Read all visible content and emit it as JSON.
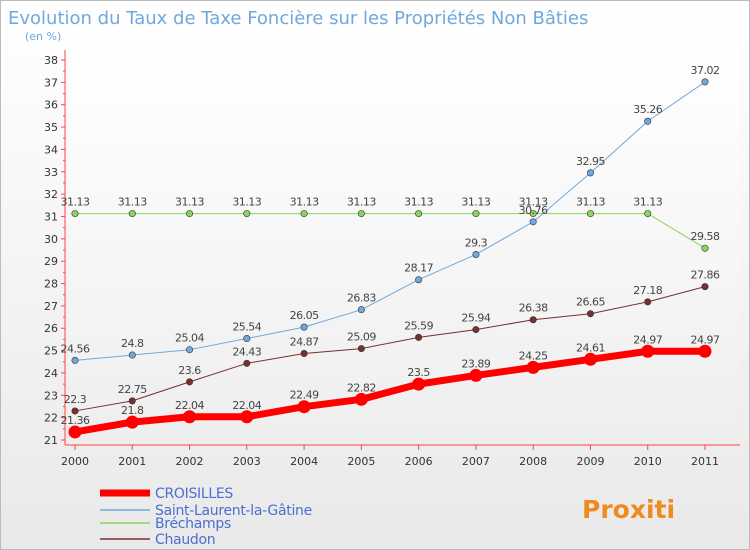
{
  "chart_data": {
    "type": "line",
    "title": "Evolution du Taux de Taxe Foncière sur les Propriétés Non Bâties",
    "subtitle": "(en %)",
    "x": [
      "2000",
      "2001",
      "2002",
      "2003",
      "2004",
      "2005",
      "2006",
      "2007",
      "2008",
      "2009",
      "2010",
      "2011"
    ],
    "ylim": [
      21,
      38
    ],
    "yticks": [
      "21",
      "22",
      "23",
      "24",
      "25",
      "26",
      "27",
      "28",
      "29",
      "30",
      "31",
      "32",
      "33",
      "34",
      "35",
      "36",
      "37",
      "38"
    ],
    "grid": false,
    "legend_position": "bottom-left",
    "series": [
      {
        "name": "CROISILLES",
        "color": "#ff0000",
        "values": [
          21.36,
          21.8,
          22.04,
          22.04,
          22.49,
          22.82,
          23.5,
          23.89,
          24.25,
          24.61,
          24.97,
          24.97
        ],
        "labels": [
          "21.36",
          "21.8",
          "22.04",
          "22.04",
          "22.49",
          "22.82",
          "23.5",
          "23.89",
          "24.25",
          "24.61",
          "24.97",
          "24.97"
        ]
      },
      {
        "name": "Saint-Laurent-la-Gâtine",
        "color": "#6fa8dc",
        "values": [
          24.56,
          24.8,
          25.04,
          25.54,
          26.05,
          26.83,
          28.17,
          29.3,
          30.76,
          32.95,
          35.26,
          37.02
        ],
        "labels": [
          "24.56",
          "24.8",
          "25.04",
          "25.54",
          "26.05",
          "26.83",
          "28.17",
          "29.3",
          "30.76",
          "32.95",
          "35.26",
          "37.02"
        ]
      },
      {
        "name": "Bréchamps",
        "color": "#8fd45a",
        "values": [
          31.13,
          31.13,
          31.13,
          31.13,
          31.13,
          31.13,
          31.13,
          31.13,
          31.13,
          31.13,
          31.13,
          29.58
        ],
        "labels": [
          "31.13",
          "31.13",
          "31.13",
          "31.13",
          "31.13",
          "31.13",
          "31.13",
          "31.13",
          "31.13",
          "31.13",
          "31.13",
          "29.58"
        ]
      },
      {
        "name": "Chaudon",
        "color": "#7a2e2e",
        "values": [
          22.3,
          22.75,
          23.6,
          24.43,
          24.87,
          25.09,
          25.59,
          25.94,
          26.38,
          26.65,
          27.18,
          27.86
        ],
        "labels": [
          "22.3",
          "22.75",
          "23.6",
          "24.43",
          "24.87",
          "25.09",
          "25.59",
          "25.94",
          "26.38",
          "26.65",
          "27.18",
          "27.86"
        ]
      }
    ]
  },
  "logo": {
    "text": "Proxiti"
  }
}
